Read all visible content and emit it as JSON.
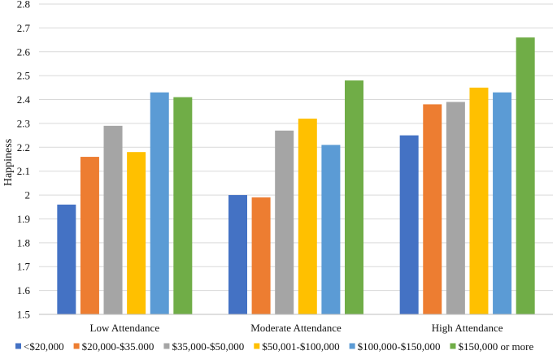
{
  "chart_data": {
    "type": "bar",
    "title": "",
    "xlabel": "",
    "ylabel": "Happiness",
    "ylim": [
      1.5,
      2.8
    ],
    "yticks": [
      "1.5",
      "1.6",
      "1.7",
      "1.8",
      "1.9",
      "2",
      "2.1",
      "2.2",
      "2.3",
      "2.4",
      "2.5",
      "2.6",
      "2.7",
      "2.8"
    ],
    "grid": true,
    "legend_position": "bottom",
    "categories": [
      "Low Attendance",
      "Moderate Attendance",
      "High Attendance"
    ],
    "series": [
      {
        "name": "<$20,000",
        "color": "#4472C4",
        "values": [
          1.96,
          2.0,
          2.25
        ]
      },
      {
        "name": "$20,000-$35.000",
        "color": "#ED7D31",
        "values": [
          2.16,
          1.99,
          2.38
        ]
      },
      {
        "name": "$35,000-$50,000",
        "color": "#A5A5A5",
        "values": [
          2.29,
          2.27,
          2.39
        ]
      },
      {
        "name": "$50,001-$100,000",
        "color": "#FFC000",
        "values": [
          2.18,
          2.32,
          2.45
        ]
      },
      {
        "name": "$100,000-$150,000",
        "color": "#5B9BD5",
        "values": [
          2.43,
          2.21,
          2.43
        ]
      },
      {
        "name": "$150,000 or more",
        "color": "#70AD47",
        "values": [
          2.41,
          2.48,
          2.66
        ]
      }
    ]
  }
}
